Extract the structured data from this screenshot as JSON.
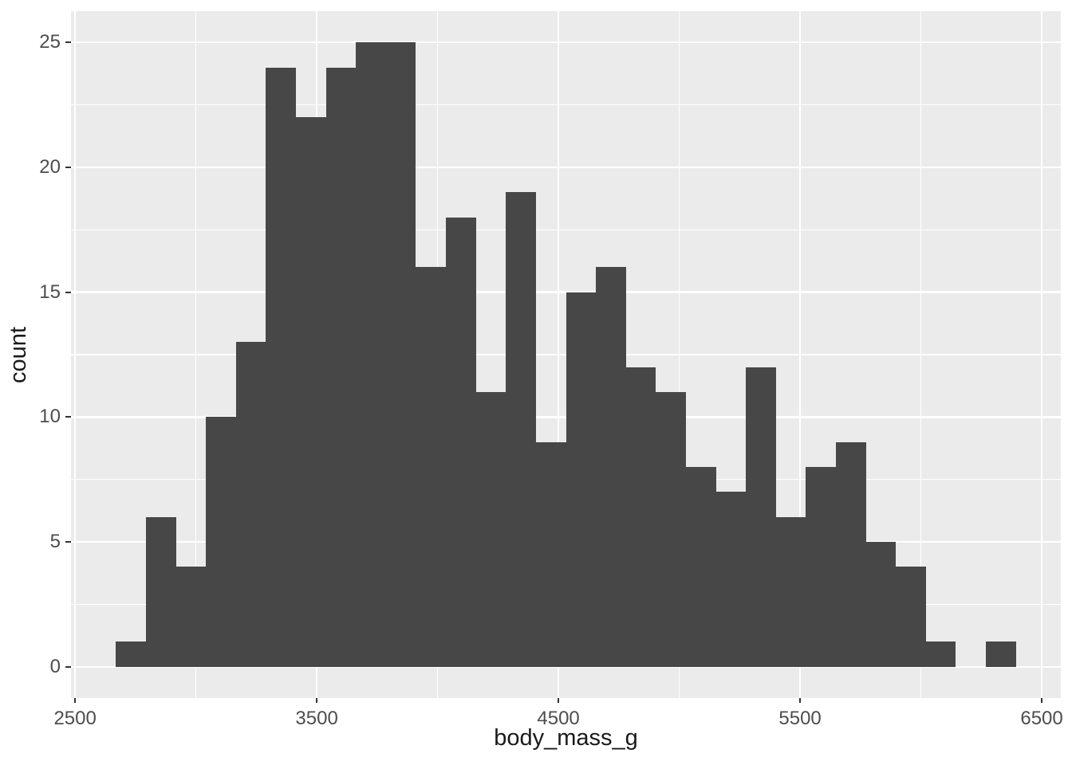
{
  "chart_data": {
    "type": "bar",
    "subtype": "histogram",
    "title": "",
    "xlabel": "body_mass_g",
    "ylabel": "count",
    "bin_width": 124.1,
    "bin_starts": [
      2669.0,
      2793.1,
      2917.2,
      3041.4,
      3165.5,
      3289.7,
      3413.8,
      3537.9,
      3662.1,
      3786.2,
      3910.3,
      4034.5,
      4158.6,
      4282.8,
      4406.9,
      4531.0,
      4655.2,
      4779.3,
      4903.4,
      5027.6,
      5151.7,
      5275.9,
      5400.0,
      5524.1,
      5648.3,
      5772.4,
      5896.6,
      6020.7,
      6144.8,
      6269.0
    ],
    "counts": [
      1,
      6,
      4,
      10,
      13,
      24,
      22,
      24,
      25,
      25,
      16,
      18,
      11,
      19,
      9,
      15,
      16,
      12,
      11,
      8,
      7,
      12,
      6,
      8,
      9,
      5,
      4,
      1,
      0,
      1
    ],
    "total_count": 342,
    "x_ticks": [
      2500,
      3500,
      4500,
      5500,
      6500
    ],
    "x_minor_ticks": [
      3000,
      4000,
      5000,
      6000
    ],
    "y_ticks": [
      0,
      5,
      10,
      15,
      20,
      25
    ],
    "y_minor_ticks": [
      2.5,
      7.5,
      12.5,
      17.5,
      22.5
    ],
    "x_domain": [
      2483,
      6579
    ],
    "y_domain": [
      -1.25,
      26.25
    ],
    "grid": "on",
    "legend_position": "none",
    "colors": {
      "bar": "#474747",
      "panel_bg": "#EBEBEB",
      "grid_major": "#FFFFFF",
      "grid_minor": "#FFFFFF",
      "tick_label": "#4D4D4D",
      "axis_title": "#1A1A1A",
      "tick_mark": "#333333",
      "figure_bg": "#FFFFFF"
    }
  }
}
